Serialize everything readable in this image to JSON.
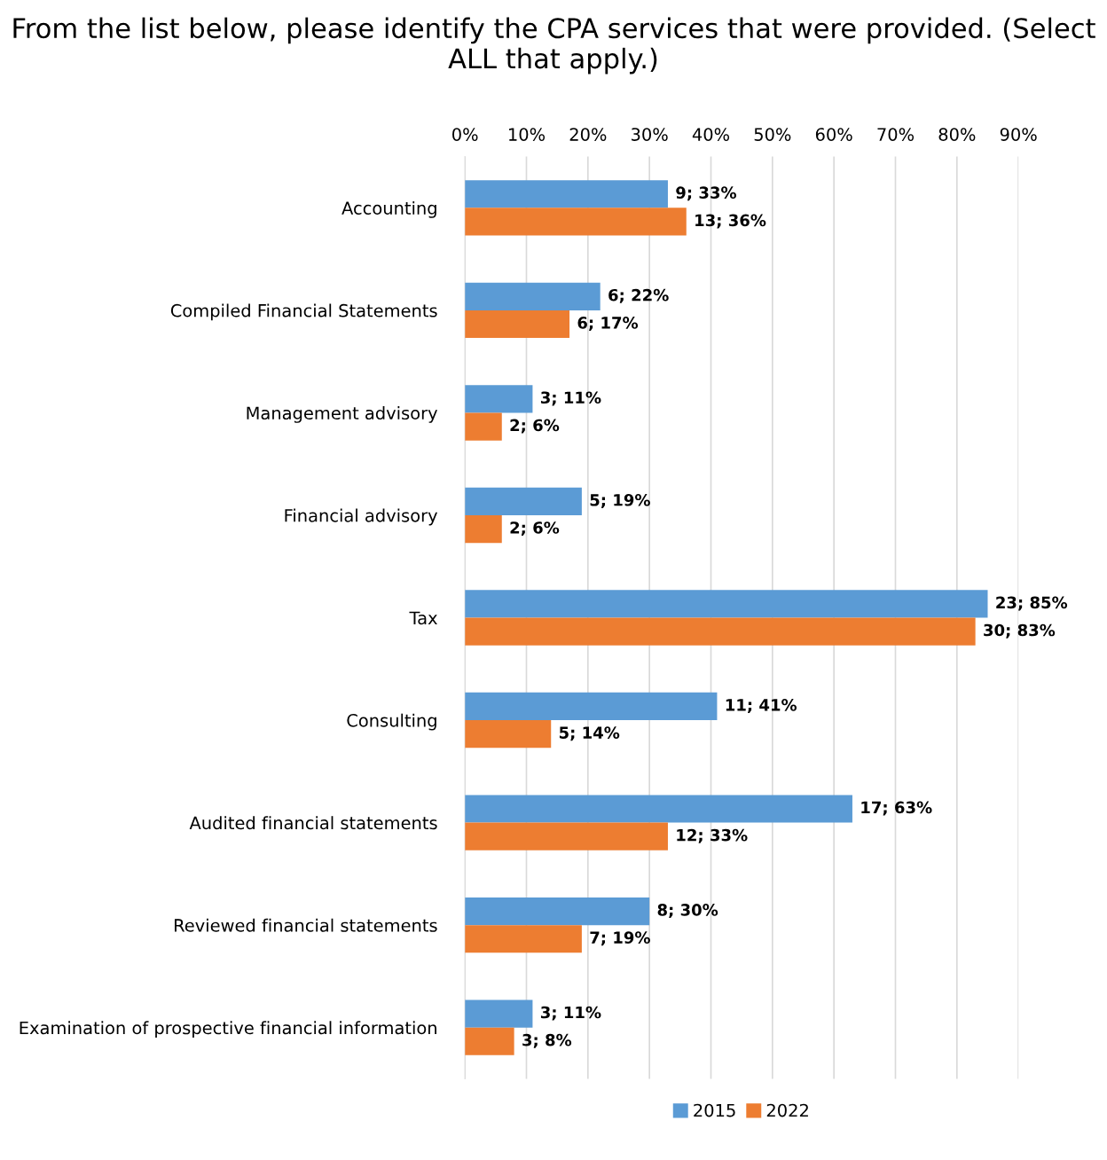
{
  "chart_data": {
    "type": "bar",
    "orientation": "horizontal",
    "title": "From the list below, please identify the CPA services that were provided. (Select ALL that apply.)",
    "categories": [
      "Accounting",
      "Compiled Financial Statements",
      "Management advisory",
      "Financial advisory",
      "Tax",
      "Consulting",
      "Audited financial statements",
      "Reviewed financial statements",
      "Examination of prospective financial information"
    ],
    "series": [
      {
        "name": "2015",
        "color": "#5b9bd5",
        "values": [
          33,
          22,
          11,
          19,
          85,
          41,
          63,
          30,
          11
        ],
        "value_labels": [
          "9; 33%",
          "6; 22%",
          "3; 11%",
          "5; 19%",
          "23; 85%",
          "11; 41%",
          "17; 63%",
          "8; 30%",
          "3; 11%"
        ]
      },
      {
        "name": "2022",
        "color": "#ed7d31",
        "values": [
          36,
          17,
          6,
          6,
          83,
          14,
          33,
          19,
          8
        ],
        "value_labels": [
          "13; 36%",
          "6; 17%",
          "2; 6%",
          "2; 6%",
          "30; 83%",
          "5; 14%",
          "12; 33%",
          "7; 19%",
          "3; 8%"
        ]
      }
    ],
    "xlim": [
      0,
      90
    ],
    "xticks": [
      {
        "value": 0,
        "label": "0%"
      },
      {
        "value": 10,
        "label": "10%"
      },
      {
        "value": 20,
        "label": "20%"
      },
      {
        "value": 30,
        "label": "30%"
      },
      {
        "value": 40,
        "label": "40%"
      },
      {
        "value": 50,
        "label": "50%"
      },
      {
        "value": 60,
        "label": "60%"
      },
      {
        "value": 70,
        "label": "70%"
      },
      {
        "value": 80,
        "label": "80%"
      },
      {
        "value": 90,
        "label": "90%"
      }
    ],
    "grid": "x",
    "legend": "bottom"
  }
}
